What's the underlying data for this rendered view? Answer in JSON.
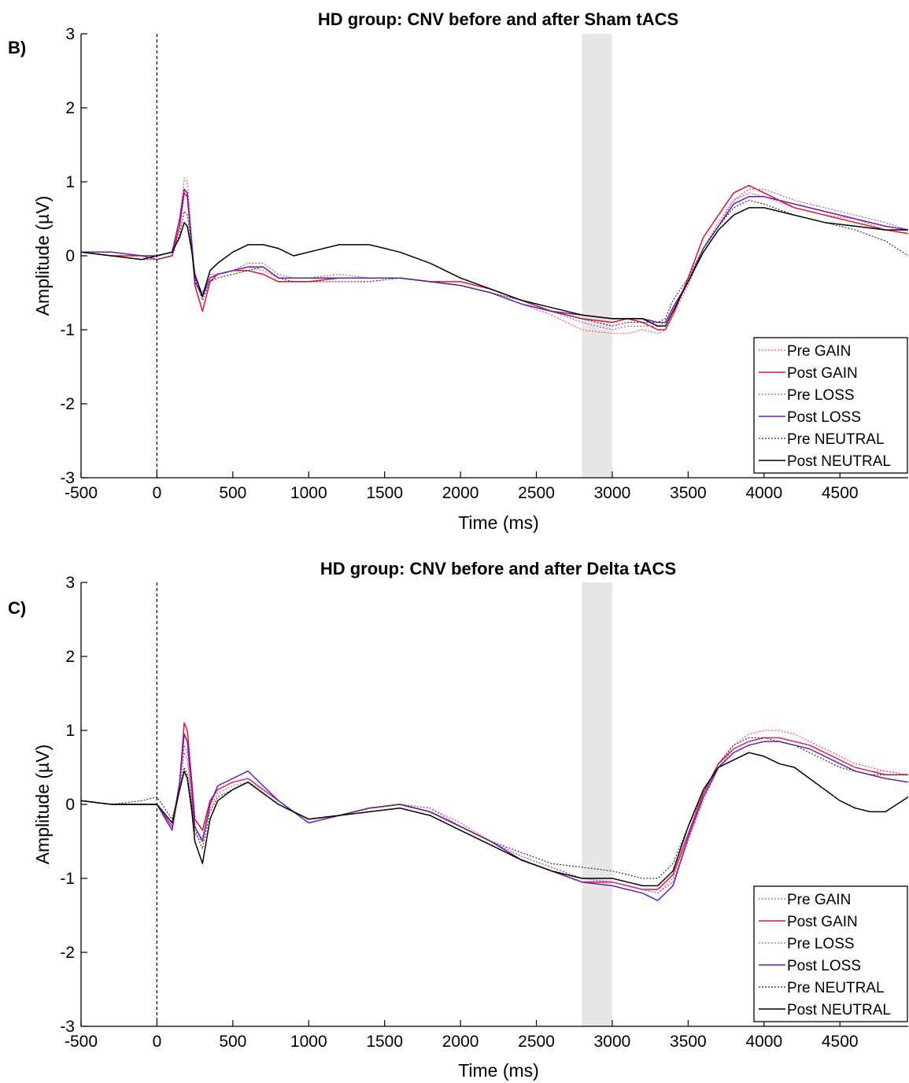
{
  "panels": [
    {
      "label": "B)"
    },
    {
      "label": "C)"
    }
  ],
  "chart_data": [
    {
      "type": "line",
      "title": "HD group: CNV before and after Sham tACS",
      "xlabel": "Time (ms)",
      "ylabel": "Amplitude (µV)",
      "xlim": [
        -500,
        4950
      ],
      "ylim": [
        -3,
        3
      ],
      "xticks": [
        -500,
        0,
        500,
        1000,
        1500,
        2000,
        2500,
        3000,
        3500,
        4000,
        4500
      ],
      "yticks": [
        -3,
        -2,
        -1,
        0,
        1,
        2,
        3
      ],
      "grid": false,
      "legend_position": "bottom-right",
      "vline_x": 0,
      "shaded_interval": [
        2800,
        3000
      ],
      "x": [
        -500,
        -300,
        -100,
        0,
        100,
        150,
        180,
        200,
        230,
        250,
        300,
        350,
        400,
        500,
        600,
        700,
        800,
        900,
        1000,
        1200,
        1400,
        1600,
        1800,
        2000,
        2200,
        2400,
        2600,
        2800,
        3000,
        3100,
        3200,
        3300,
        3350,
        3400,
        3500,
        3600,
        3700,
        3800,
        3900,
        4000,
        4200,
        4400,
        4600,
        4800,
        4950
      ],
      "series": [
        {
          "name": "Pre GAIN",
          "color": "#ff4f6e",
          "style": "dotted",
          "values": [
            0.05,
            0,
            -0.05,
            -0.05,
            0,
            0.5,
            1.05,
            1.0,
            0.2,
            -0.3,
            -0.5,
            -0.25,
            -0.25,
            -0.2,
            -0.15,
            -0.2,
            -0.3,
            -0.3,
            -0.3,
            -0.3,
            -0.3,
            -0.3,
            -0.35,
            -0.4,
            -0.5,
            -0.65,
            -0.8,
            -1.0,
            -1.05,
            -1.05,
            -1.0,
            -1.05,
            -1.0,
            -0.8,
            -0.4,
            0.1,
            0.4,
            0.75,
            0.85,
            0.8,
            0.65,
            0.55,
            0.5,
            0.35,
            0.3
          ]
        },
        {
          "name": "Post GAIN",
          "color": "#e8102f",
          "style": "solid",
          "values": [
            0.05,
            0,
            0,
            -0.05,
            0,
            0.4,
            0.85,
            0.8,
            0.1,
            -0.4,
            -0.75,
            -0.35,
            -0.25,
            -0.2,
            -0.2,
            -0.25,
            -0.35,
            -0.35,
            -0.35,
            -0.3,
            -0.3,
            -0.3,
            -0.35,
            -0.35,
            -0.45,
            -0.6,
            -0.75,
            -0.85,
            -0.9,
            -0.85,
            -0.9,
            -1.0,
            -1.0,
            -0.8,
            -0.3,
            0.25,
            0.55,
            0.85,
            0.95,
            0.85,
            0.65,
            0.55,
            0.45,
            0.35,
            0.3
          ]
        },
        {
          "name": "Pre LOSS",
          "color": "#a25ad6",
          "style": "dotted",
          "values": [
            0.05,
            0.05,
            0,
            0,
            0.05,
            0.5,
            0.9,
            0.85,
            0.2,
            -0.3,
            -0.5,
            -0.3,
            -0.25,
            -0.2,
            -0.1,
            -0.1,
            -0.25,
            -0.3,
            -0.3,
            -0.25,
            -0.3,
            -0.3,
            -0.35,
            -0.4,
            -0.5,
            -0.6,
            -0.75,
            -0.9,
            -1.0,
            -0.95,
            -0.95,
            -0.95,
            -0.9,
            -0.7,
            -0.35,
            0.1,
            0.45,
            0.75,
            0.9,
            0.9,
            0.75,
            0.65,
            0.55,
            0.45,
            0.35
          ]
        },
        {
          "name": "Post LOSS",
          "color": "#6a1fb0",
          "style": "solid",
          "values": [
            0.05,
            0.05,
            0,
            0,
            0.05,
            0.5,
            0.9,
            0.85,
            0.15,
            -0.35,
            -0.55,
            -0.3,
            -0.25,
            -0.2,
            -0.15,
            -0.15,
            -0.3,
            -0.3,
            -0.3,
            -0.3,
            -0.3,
            -0.3,
            -0.35,
            -0.4,
            -0.5,
            -0.65,
            -0.75,
            -0.8,
            -0.85,
            -0.85,
            -0.85,
            -0.9,
            -0.9,
            -0.7,
            -0.35,
            0.1,
            0.4,
            0.7,
            0.8,
            0.8,
            0.7,
            0.6,
            0.5,
            0.4,
            0.35
          ]
        },
        {
          "name": "Pre NEUTRAL",
          "color": "#333333",
          "style": "dotted",
          "values": [
            0.05,
            0,
            -0.05,
            -0.05,
            0,
            0.3,
            0.6,
            0.55,
            0.1,
            -0.3,
            -0.6,
            -0.35,
            -0.3,
            -0.25,
            -0.2,
            -0.15,
            -0.3,
            -0.35,
            -0.35,
            -0.35,
            -0.35,
            -0.3,
            -0.35,
            -0.4,
            -0.5,
            -0.6,
            -0.75,
            -0.85,
            -0.95,
            -0.9,
            -0.9,
            -0.9,
            -0.85,
            -0.6,
            -0.3,
            0.1,
            0.4,
            0.65,
            0.75,
            0.7,
            0.55,
            0.45,
            0.35,
            0.2,
            0.0
          ]
        },
        {
          "name": "Post NEUTRAL",
          "color": "#000000",
          "style": "solid",
          "values": [
            0.05,
            0,
            -0.05,
            0,
            0.05,
            0.25,
            0.45,
            0.4,
            0.05,
            -0.25,
            -0.55,
            -0.2,
            -0.1,
            0.05,
            0.15,
            0.15,
            0.1,
            0.0,
            0.05,
            0.15,
            0.15,
            0.05,
            -0.1,
            -0.3,
            -0.45,
            -0.6,
            -0.7,
            -0.8,
            -0.85,
            -0.85,
            -0.85,
            -0.95,
            -0.95,
            -0.75,
            -0.35,
            0.05,
            0.35,
            0.55,
            0.65,
            0.65,
            0.55,
            0.45,
            0.4,
            0.35,
            0.35
          ]
        }
      ]
    },
    {
      "type": "line",
      "title": "HD group: CNV before and after Delta tACS",
      "xlabel": "Time (ms)",
      "ylabel": "Amplitude (µV)",
      "xlim": [
        -500,
        4950
      ],
      "ylim": [
        -3,
        3
      ],
      "xticks": [
        -500,
        0,
        500,
        1000,
        1500,
        2000,
        2500,
        3000,
        3500,
        4000,
        4500
      ],
      "yticks": [
        -3,
        -2,
        -1,
        0,
        1,
        2,
        3
      ],
      "grid": false,
      "legend_position": "bottom-right",
      "vline_x": 0,
      "shaded_interval": [
        2800,
        3000
      ],
      "x": [
        -500,
        -300,
        -100,
        0,
        100,
        150,
        180,
        200,
        230,
        250,
        300,
        350,
        400,
        500,
        600,
        700,
        800,
        900,
        1000,
        1200,
        1400,
        1600,
        1800,
        2000,
        2200,
        2400,
        2600,
        2800,
        3000,
        3100,
        3200,
        3300,
        3400,
        3500,
        3600,
        3700,
        3800,
        3900,
        4000,
        4100,
        4200,
        4300,
        4400,
        4500,
        4600,
        4700,
        4800,
        4950
      ],
      "series": [
        {
          "name": "Pre GAIN",
          "color": "#ff4f6e",
          "style": "dotted",
          "values": [
            0.05,
            0,
            0,
            0,
            -0.35,
            0.2,
            0.7,
            0.6,
            0.0,
            -0.4,
            -0.5,
            -0.05,
            0.15,
            0.25,
            0.3,
            0.2,
            0.05,
            -0.1,
            -0.25,
            -0.15,
            -0.05,
            0.0,
            -0.05,
            -0.25,
            -0.5,
            -0.7,
            -0.85,
            -1.0,
            -1.05,
            -1.1,
            -1.15,
            -1.2,
            -1.0,
            -0.45,
            0.1,
            0.55,
            0.8,
            0.95,
            1.0,
            1.0,
            0.95,
            0.85,
            0.75,
            0.65,
            0.55,
            0.5,
            0.45,
            0.4
          ]
        },
        {
          "name": "Post GAIN",
          "color": "#e8102f",
          "style": "solid",
          "values": [
            0.05,
            0,
            0,
            0,
            -0.3,
            0.3,
            1.1,
            1.0,
            0.3,
            -0.2,
            -0.35,
            0.05,
            0.2,
            0.3,
            0.35,
            0.2,
            0.05,
            -0.1,
            -0.2,
            -0.15,
            -0.05,
            0.0,
            -0.1,
            -0.3,
            -0.5,
            -0.75,
            -0.9,
            -1.05,
            -1.05,
            -1.1,
            -1.15,
            -1.15,
            -0.95,
            -0.4,
            0.15,
            0.55,
            0.75,
            0.85,
            0.9,
            0.9,
            0.85,
            0.8,
            0.7,
            0.6,
            0.5,
            0.45,
            0.4,
            0.4
          ]
        },
        {
          "name": "Pre LOSS",
          "color": "#a25ad6",
          "style": "dotted",
          "values": [
            0.05,
            0,
            0,
            0,
            -0.3,
            0.25,
            0.8,
            0.7,
            0.1,
            -0.35,
            -0.45,
            0.0,
            0.2,
            0.3,
            0.35,
            0.2,
            0.05,
            -0.1,
            -0.25,
            -0.15,
            -0.05,
            0.0,
            -0.05,
            -0.3,
            -0.5,
            -0.7,
            -0.85,
            -1.0,
            -1.05,
            -1.1,
            -1.15,
            -1.2,
            -1.05,
            -0.5,
            0.05,
            0.5,
            0.75,
            0.85,
            0.9,
            0.9,
            0.85,
            0.8,
            0.7,
            0.6,
            0.5,
            0.45,
            0.45,
            0.4
          ]
        },
        {
          "name": "Post LOSS",
          "color": "#6a1fb0",
          "style": "solid",
          "values": [
            0.05,
            0,
            0,
            0,
            -0.35,
            0.3,
            0.95,
            0.85,
            0.2,
            -0.3,
            -0.5,
            0.0,
            0.25,
            0.35,
            0.45,
            0.25,
            0.05,
            -0.1,
            -0.25,
            -0.15,
            -0.05,
            0.0,
            -0.1,
            -0.3,
            -0.5,
            -0.75,
            -0.9,
            -1.05,
            -1.1,
            -1.15,
            -1.2,
            -1.3,
            -1.1,
            -0.45,
            0.1,
            0.5,
            0.7,
            0.8,
            0.85,
            0.85,
            0.8,
            0.75,
            0.65,
            0.55,
            0.45,
            0.4,
            0.35,
            0.3
          ]
        },
        {
          "name": "Pre NEUTRAL",
          "color": "#333333",
          "style": "dotted",
          "values": [
            0.05,
            0,
            0.05,
            0.1,
            -0.2,
            0.2,
            0.5,
            0.4,
            0.0,
            -0.35,
            -0.6,
            -0.1,
            0.1,
            0.2,
            0.3,
            0.15,
            0.0,
            -0.1,
            -0.2,
            -0.15,
            -0.05,
            0.0,
            -0.1,
            -0.3,
            -0.5,
            -0.65,
            -0.8,
            -0.85,
            -0.9,
            -0.95,
            -1.0,
            -1.0,
            -0.8,
            -0.3,
            0.15,
            0.55,
            0.8,
            0.9,
            0.9,
            0.85,
            0.8,
            0.7,
            0.6,
            0.5,
            0.45,
            0.4,
            0.4,
            0.4
          ]
        },
        {
          "name": "Post NEUTRAL",
          "color": "#000000",
          "style": "solid",
          "values": [
            0.05,
            0,
            0,
            0,
            -0.25,
            0.2,
            0.45,
            0.35,
            -0.1,
            -0.5,
            -0.8,
            -0.2,
            0.05,
            0.2,
            0.3,
            0.15,
            0.0,
            -0.1,
            -0.2,
            -0.15,
            -0.1,
            -0.05,
            -0.15,
            -0.35,
            -0.55,
            -0.75,
            -0.9,
            -1.0,
            -1.0,
            -1.05,
            -1.1,
            -1.1,
            -0.9,
            -0.3,
            0.2,
            0.5,
            0.6,
            0.7,
            0.65,
            0.55,
            0.5,
            0.35,
            0.2,
            0.05,
            -0.05,
            -0.1,
            -0.1,
            0.1
          ]
        }
      ]
    }
  ]
}
